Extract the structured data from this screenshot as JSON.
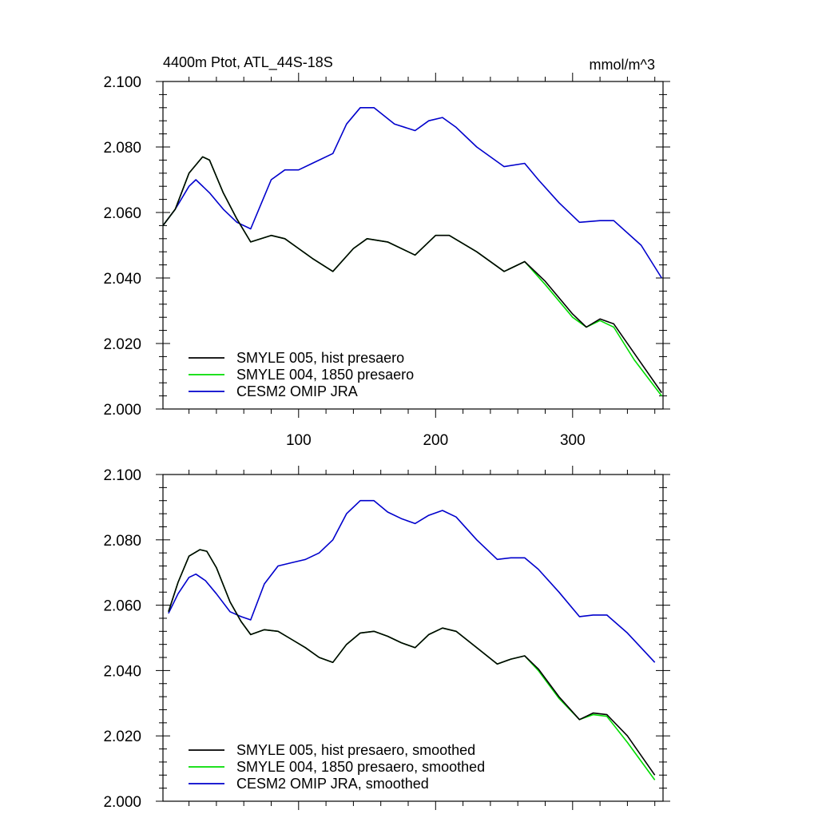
{
  "figure": {
    "title_left": "4400m Ptot, ATL_44S-18S",
    "title_right": "mmol/m^3"
  },
  "chart_data": [
    {
      "type": "line",
      "title": "4400m Ptot, ATL_44S-18S",
      "units": "mmol/m^3",
      "xlim": [
        1,
        366
      ],
      "ylim": [
        2.0,
        2.1
      ],
      "x_ticks": [
        100,
        200,
        300
      ],
      "x_tick_labels": [
        "100",
        "200",
        "300"
      ],
      "y_ticks": [
        2.0,
        2.02,
        2.04,
        2.06,
        2.08,
        2.1
      ],
      "y_tick_labels": [
        "2.000",
        "2.020",
        "2.040",
        "2.060",
        "2.080",
        "2.100"
      ],
      "show_x_tick_labels": true,
      "grid": false,
      "legend_position": "bottom-left",
      "series": [
        {
          "name": "SMYLE 005, hist presaero",
          "color": "#000000",
          "x": [
            1,
            10,
            20,
            30,
            35,
            45,
            55,
            65,
            80,
            90,
            100,
            110,
            125,
            140,
            150,
            165,
            185,
            200,
            210,
            230,
            250,
            265,
            280,
            300,
            310,
            320,
            330,
            345,
            365
          ],
          "y": [
            2.056,
            2.061,
            2.072,
            2.077,
            2.076,
            2.066,
            2.058,
            2.051,
            2.053,
            2.052,
            2.049,
            2.046,
            2.042,
            2.049,
            2.052,
            2.051,
            2.047,
            2.053,
            2.053,
            2.048,
            2.042,
            2.045,
            2.039,
            2.029,
            2.025,
            2.0275,
            2.026,
            2.017,
            2.005
          ]
        },
        {
          "name": "SMYLE 004, 1850 presaero",
          "color": "#00dd00",
          "x": [
            1,
            10,
            20,
            30,
            35,
            45,
            55,
            65,
            80,
            90,
            100,
            110,
            125,
            140,
            150,
            165,
            185,
            200,
            210,
            230,
            250,
            265,
            280,
            300,
            310,
            320,
            330,
            345,
            365
          ],
          "y": [
            2.056,
            2.061,
            2.072,
            2.077,
            2.076,
            2.066,
            2.058,
            2.051,
            2.053,
            2.052,
            2.049,
            2.046,
            2.042,
            2.049,
            2.052,
            2.051,
            2.047,
            2.053,
            2.053,
            2.048,
            2.042,
            2.045,
            2.038,
            2.028,
            2.025,
            2.027,
            2.025,
            2.015,
            2.004
          ]
        },
        {
          "name": "CESM2 OMIP JRA",
          "color": "#0000cc",
          "x": [
            1,
            10,
            20,
            25,
            35,
            45,
            55,
            65,
            80,
            90,
            100,
            110,
            125,
            135,
            145,
            155,
            170,
            185,
            195,
            205,
            215,
            230,
            250,
            265,
            275,
            290,
            305,
            320,
            330,
            350,
            365
          ],
          "y": [
            2.056,
            2.061,
            2.068,
            2.07,
            2.066,
            2.061,
            2.057,
            2.055,
            2.07,
            2.073,
            2.073,
            2.075,
            2.078,
            2.087,
            2.092,
            2.092,
            2.087,
            2.085,
            2.088,
            2.089,
            2.086,
            2.08,
            2.074,
            2.075,
            2.07,
            2.063,
            2.057,
            2.0575,
            2.0575,
            2.05,
            2.04
          ]
        }
      ]
    },
    {
      "type": "line",
      "title": "",
      "xlim": [
        1,
        366
      ],
      "ylim": [
        2.0,
        2.1
      ],
      "x_ticks": [
        100,
        200,
        300
      ],
      "y_ticks": [
        2.0,
        2.02,
        2.04,
        2.06,
        2.08,
        2.1
      ],
      "y_tick_labels": [
        "2.000",
        "2.020",
        "2.040",
        "2.060",
        "2.080",
        "2.100"
      ],
      "show_x_tick_labels": false,
      "grid": false,
      "legend_position": "bottom-left",
      "series": [
        {
          "name": "SMYLE 005, hist presaero, smoothed",
          "color": "#000000",
          "x": [
            5,
            12,
            20,
            28,
            33,
            40,
            50,
            58,
            65,
            75,
            85,
            95,
            105,
            115,
            125,
            135,
            145,
            155,
            165,
            175,
            185,
            195,
            205,
            215,
            230,
            245,
            255,
            265,
            275,
            290,
            305,
            315,
            325,
            340,
            360
          ],
          "y": [
            2.058,
            2.067,
            2.075,
            2.077,
            2.0765,
            2.0715,
            2.061,
            2.055,
            2.051,
            2.0525,
            2.052,
            2.0495,
            2.047,
            2.044,
            2.0425,
            2.048,
            2.0515,
            2.052,
            2.0505,
            2.0485,
            2.047,
            2.051,
            2.053,
            2.052,
            2.047,
            2.042,
            2.0435,
            2.0445,
            2.0405,
            2.032,
            2.025,
            2.027,
            2.0265,
            2.02,
            2.008
          ]
        },
        {
          "name": "SMYLE 004, 1850 presaero, smoothed",
          "color": "#00dd00",
          "x": [
            5,
            12,
            20,
            28,
            33,
            40,
            50,
            58,
            65,
            75,
            85,
            95,
            105,
            115,
            125,
            135,
            145,
            155,
            165,
            175,
            185,
            195,
            205,
            215,
            230,
            245,
            255,
            265,
            275,
            290,
            305,
            315,
            325,
            340,
            360
          ],
          "y": [
            2.058,
            2.067,
            2.075,
            2.077,
            2.0765,
            2.0715,
            2.061,
            2.055,
            2.051,
            2.0525,
            2.052,
            2.0495,
            2.047,
            2.044,
            2.0425,
            2.048,
            2.0515,
            2.052,
            2.0505,
            2.0485,
            2.047,
            2.051,
            2.053,
            2.052,
            2.047,
            2.042,
            2.0435,
            2.0445,
            2.04,
            2.0315,
            2.025,
            2.0265,
            2.026,
            2.018,
            2.0065
          ]
        },
        {
          "name": "CESM2 OMIP JRA, smoothed",
          "color": "#0000cc",
          "x": [
            5,
            12,
            20,
            25,
            32,
            40,
            50,
            58,
            65,
            75,
            85,
            95,
            105,
            115,
            125,
            135,
            145,
            155,
            165,
            175,
            185,
            195,
            205,
            215,
            230,
            245,
            255,
            265,
            275,
            290,
            305,
            315,
            325,
            340,
            360
          ],
          "y": [
            2.0575,
            2.0635,
            2.0685,
            2.0695,
            2.0675,
            2.0635,
            2.058,
            2.0565,
            2.0555,
            2.0665,
            2.072,
            2.073,
            2.074,
            2.076,
            2.08,
            2.088,
            2.092,
            2.092,
            2.0885,
            2.0865,
            2.085,
            2.0875,
            2.089,
            2.087,
            2.08,
            2.074,
            2.0745,
            2.0745,
            2.071,
            2.064,
            2.0565,
            2.057,
            2.057,
            2.0515,
            2.0425
          ]
        }
      ]
    }
  ]
}
